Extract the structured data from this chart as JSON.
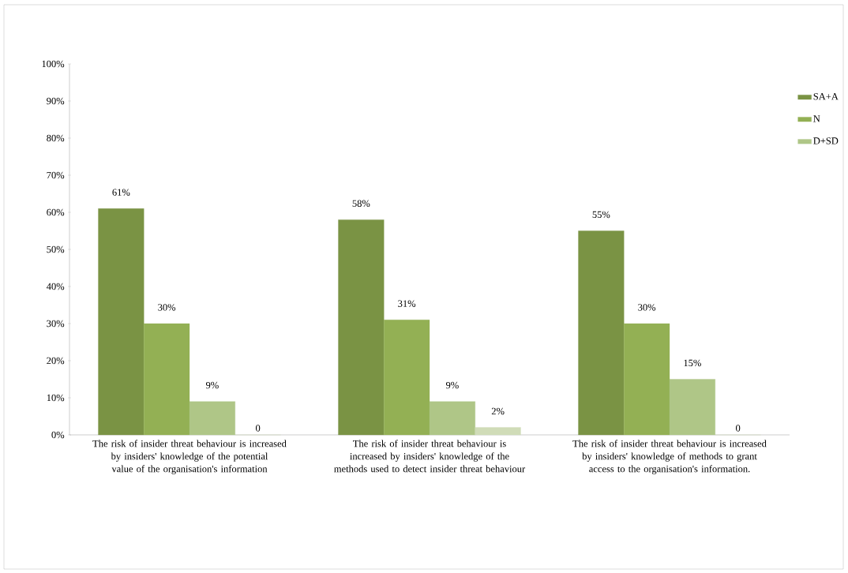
{
  "chart_data": {
    "type": "bar",
    "categories": [
      "The risk of insider threat behaviour is increased by insiders' knowledge of the potential value of the organisation's information",
      "The risk of insider threat behaviour is increased by insiders' knowledge of the methods used to detect insider threat behaviour",
      "The risk of insider threat behaviour is increased by insiders' knowledge of methods to grant access to the organisation's information."
    ],
    "series": [
      {
        "name": "SA+A",
        "color": "#7a9344",
        "values": [
          61,
          58,
          55
        ],
        "value_labels": [
          "61%",
          "58%",
          "55%"
        ]
      },
      {
        "name": "N",
        "color": "#93b054",
        "values": [
          30,
          31,
          30
        ],
        "value_labels": [
          "30%",
          "31%",
          "30%"
        ]
      },
      {
        "name": "D+SD",
        "color": "#afc687",
        "values": [
          9,
          9,
          15
        ],
        "value_labels": [
          "9%",
          "9%",
          "15%"
        ]
      },
      {
        "color": "#d0dcb8",
        "values": [
          0,
          2,
          0
        ],
        "value_labels": [
          "0",
          "2%",
          "0"
        ]
      }
    ],
    "ylim": [
      0,
      100
    ],
    "yticks": [
      {
        "value": 0,
        "label": "0%"
      },
      {
        "value": 10,
        "label": "10%"
      },
      {
        "value": 20,
        "label": "20%"
      },
      {
        "value": 30,
        "label": "30%"
      },
      {
        "value": 40,
        "label": "40%"
      },
      {
        "value": 50,
        "label": "50%"
      },
      {
        "value": 60,
        "label": "60%"
      },
      {
        "value": 70,
        "label": "70%"
      },
      {
        "value": 80,
        "label": "80%"
      },
      {
        "value": 90,
        "label": "90%"
      },
      {
        "value": 100,
        "label": "100%"
      }
    ],
    "grid": false,
    "legend": "right"
  }
}
